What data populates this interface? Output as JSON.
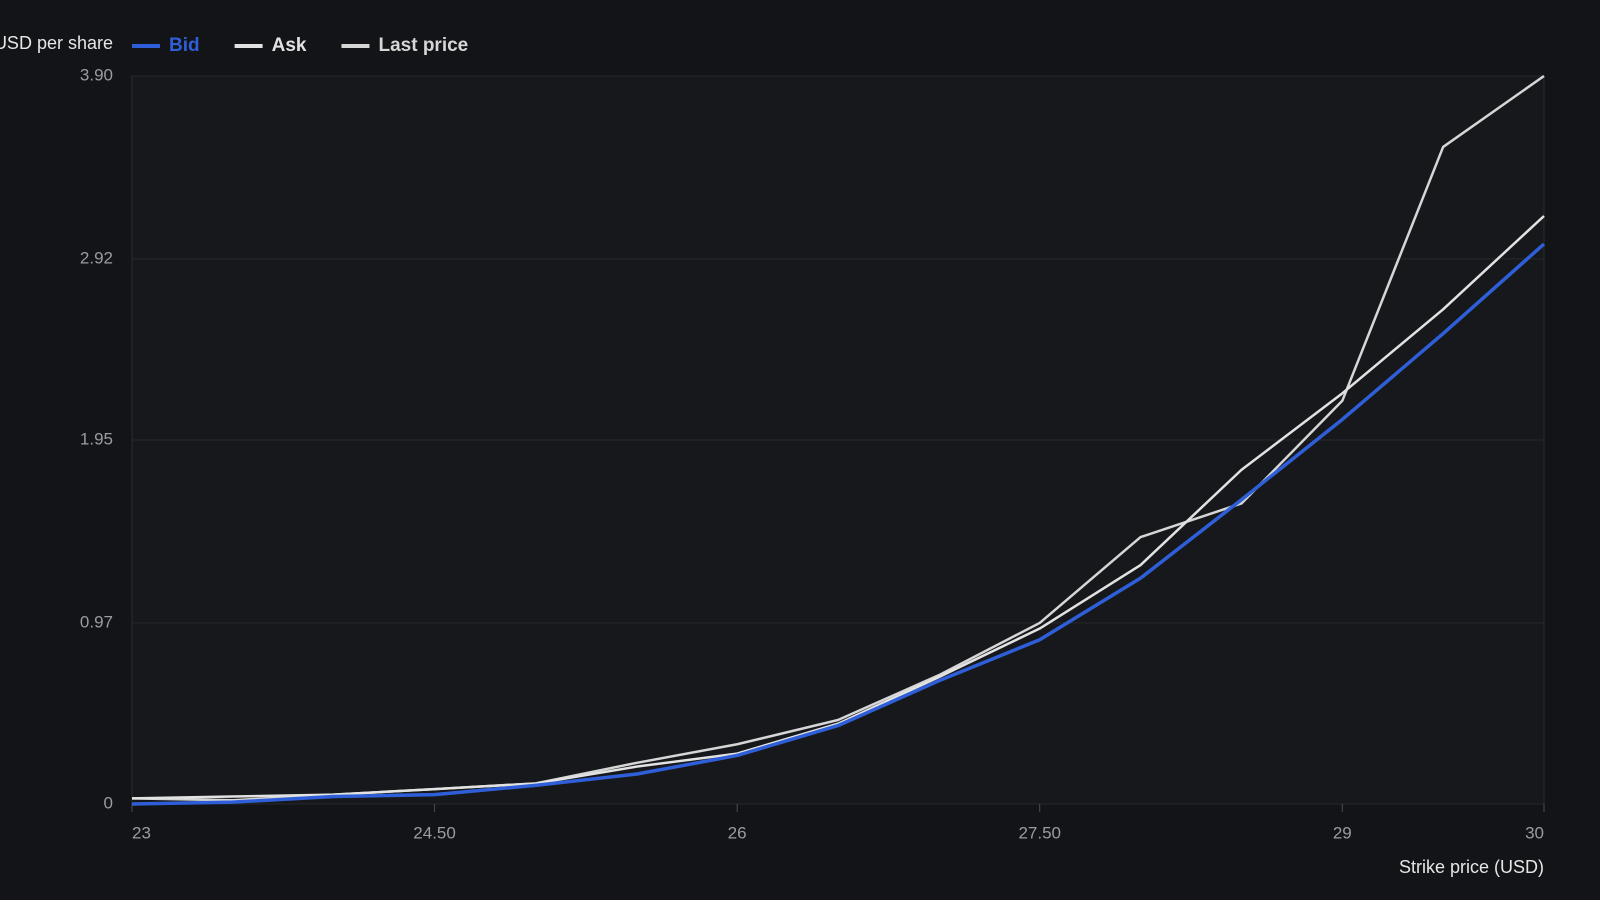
{
  "chart_data": {
    "type": "line",
    "y_label": "USD per share",
    "x_label": "Strike price (USD)",
    "x": [
      23,
      23.5,
      24,
      24.5,
      25,
      25.5,
      26,
      26.5,
      27,
      27.5,
      28,
      28.5,
      29,
      29.5,
      30
    ],
    "series": [
      {
        "name": "Bid",
        "color": "#2f5fd8",
        "values": [
          0,
          0.01,
          0.04,
          0.05,
          0.1,
          0.16,
          0.26,
          0.42,
          0.66,
          0.88,
          1.21,
          1.63,
          2.06,
          2.52,
          3.0
        ]
      },
      {
        "name": "Ask",
        "color": "#e2e2e2",
        "values": [
          0.03,
          0.04,
          0.05,
          0.08,
          0.11,
          0.2,
          0.27,
          0.43,
          0.68,
          0.94,
          1.28,
          1.79,
          2.2,
          2.65,
          3.15
        ]
      },
      {
        "name": "Last price",
        "color": "#d6d6d6",
        "values": [
          0.03,
          0.02,
          0.05,
          0.08,
          0.11,
          0.22,
          0.32,
          0.45,
          0.69,
          0.97,
          1.43,
          1.61,
          2.16,
          3.52,
          3.9
        ]
      }
    ],
    "xlim": [
      23,
      30
    ],
    "xticks": [
      23,
      {
        "value": 24.5,
        "label": "24.50"
      },
      26,
      {
        "value": 27.5,
        "label": "27.50"
      },
      29,
      30
    ],
    "ylim": [
      0,
      3.9
    ],
    "yticks": [
      0,
      0.97,
      1.95,
      2.92,
      {
        "value": 3.9,
        "label": "3.90"
      }
    ],
    "grid": true
  }
}
